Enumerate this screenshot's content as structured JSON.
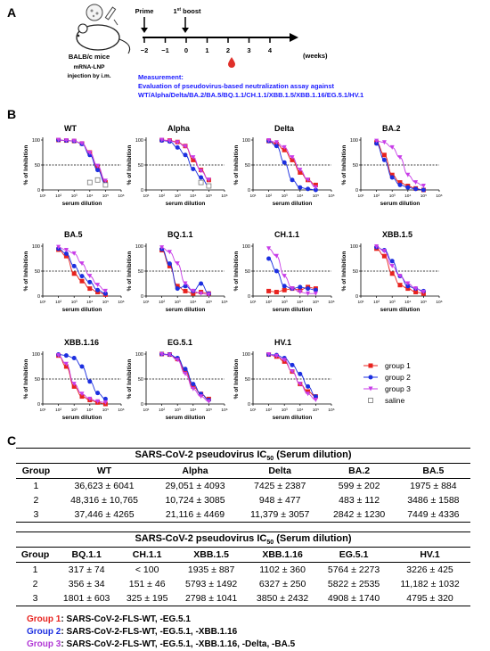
{
  "panel_labels": {
    "a": "A",
    "b": "B",
    "c": "C"
  },
  "schematic": {
    "mouse_label_1": "BALB/c mice",
    "mouse_label_2": "mRNA-LNP",
    "mouse_label_3": "injection by i.m.",
    "prime_label": "Prime",
    "boost_label": "1",
    "boost_sup": "st",
    "boost_word": " boost",
    "ticks": [
      "−2",
      "−1",
      "0",
      "1",
      "2",
      "3",
      "4"
    ],
    "weeks_label": "(weeks)",
    "measurement_title": "Measurement:",
    "measurement_line1": "Evaluation of pseudovirus-based neutralization assay against",
    "measurement_line2": "WT/Alpha/Delta/BA.2/BA.5/BQ.1.1/CH.1.1/XBB.1.5/XBB.1.16/EG.5.1/HV.1",
    "colors": {
      "blue_text": "#1a1aff",
      "drop": "#e0302a"
    }
  },
  "chart_common": {
    "ylabel": "% of Inhibition",
    "xlabel": "serum dilution",
    "y_ticks": [
      "0",
      "50",
      "100"
    ],
    "x_ticks": [
      "10¹",
      "10²",
      "10³",
      "10⁴",
      "10⁵",
      "10⁶"
    ],
    "ylim": [
      0,
      100
    ],
    "xlim_log10": [
      1,
      6
    ],
    "reference_line": 50,
    "series_styles": [
      {
        "name": "group 1",
        "color": "#e8231f",
        "marker": "square"
      },
      {
        "name": "group 2",
        "color": "#1c2fe0",
        "marker": "circle"
      },
      {
        "name": "group 3",
        "color": "#c83de8",
        "marker": "triangle-down"
      },
      {
        "name": "saline",
        "color": "#777777",
        "marker": "open-square"
      }
    ]
  },
  "chart_data": [
    {
      "type": "scatter",
      "title": "WT",
      "x_log10": [
        2,
        2.5,
        3,
        3.5,
        4,
        4.5,
        5
      ],
      "series": [
        {
          "name": "group 1",
          "values": [
            100,
            99,
            98,
            93,
            75,
            45,
            15
          ]
        },
        {
          "name": "group 2",
          "values": [
            100,
            99,
            98,
            92,
            70,
            40,
            12
          ]
        },
        {
          "name": "group 3",
          "values": [
            100,
            99,
            98,
            93,
            74,
            48,
            18
          ]
        },
        {
          "name": "saline",
          "values": [
            null,
            null,
            null,
            null,
            15,
            20,
            10
          ]
        }
      ]
    },
    {
      "type": "scatter",
      "title": "Alpha",
      "x_log10": [
        2,
        2.5,
        3,
        3.5,
        4,
        4.5,
        5
      ],
      "series": [
        {
          "name": "group 1",
          "values": [
            100,
            99,
            96,
            88,
            60,
            40,
            20
          ]
        },
        {
          "name": "group 2",
          "values": [
            99,
            97,
            85,
            70,
            42,
            25,
            8
          ]
        },
        {
          "name": "group 3",
          "values": [
            100,
            98,
            95,
            87,
            65,
            38,
            20
          ]
        },
        {
          "name": "saline",
          "values": [
            null,
            null,
            null,
            null,
            null,
            15,
            8
          ]
        }
      ]
    },
    {
      "type": "scatter",
      "title": "Delta",
      "x_log10": [
        2,
        2.5,
        3,
        3.5,
        4,
        4.5,
        5
      ],
      "series": [
        {
          "name": "group 1",
          "values": [
            98,
            92,
            80,
            60,
            35,
            20,
            10
          ]
        },
        {
          "name": "group 2",
          "values": [
            98,
            88,
            55,
            20,
            5,
            2,
            0
          ]
        },
        {
          "name": "group 3",
          "values": [
            99,
            95,
            85,
            65,
            40,
            20,
            5
          ]
        }
      ]
    },
    {
      "type": "scatter",
      "title": "BA.2",
      "x_log10": [
        2,
        2.5,
        3,
        3.5,
        4,
        4.5,
        5
      ],
      "series": [
        {
          "name": "group 1",
          "values": [
            95,
            70,
            30,
            15,
            8,
            3,
            0
          ]
        },
        {
          "name": "group 2",
          "values": [
            93,
            60,
            25,
            10,
            5,
            2,
            0
          ]
        },
        {
          "name": "group 3",
          "values": [
            98,
            95,
            85,
            65,
            30,
            15,
            8
          ]
        }
      ]
    },
    {
      "type": "scatter",
      "title": "BA.5",
      "x_log10": [
        2,
        2.5,
        3,
        3.5,
        4,
        4.5,
        5
      ],
      "series": [
        {
          "name": "group 1",
          "values": [
            93,
            80,
            45,
            30,
            15,
            8,
            3
          ]
        },
        {
          "name": "group 2",
          "values": [
            95,
            85,
            60,
            40,
            28,
            12,
            5
          ]
        },
        {
          "name": "group 3",
          "values": [
            98,
            92,
            85,
            65,
            40,
            22,
            10
          ]
        }
      ]
    },
    {
      "type": "scatter",
      "title": "BQ.1.1",
      "x_log10": [
        2,
        2.5,
        3,
        3.5,
        4,
        4.5,
        5
      ],
      "series": [
        {
          "name": "group 1",
          "values": [
            92,
            60,
            20,
            10,
            5,
            8,
            5
          ]
        },
        {
          "name": "group 2",
          "values": [
            94,
            65,
            15,
            20,
            10,
            25,
            5
          ]
        },
        {
          "name": "group 3",
          "values": [
            97,
            88,
            65,
            25,
            10,
            5,
            3
          ]
        }
      ]
    },
    {
      "type": "scatter",
      "title": "CH.1.1",
      "x_log10": [
        2,
        2.5,
        3,
        3.5,
        4,
        4.5,
        5
      ],
      "series": [
        {
          "name": "group 1",
          "values": [
            10,
            8,
            12,
            15,
            12,
            18,
            15
          ]
        },
        {
          "name": "group 2",
          "values": [
            75,
            50,
            20,
            15,
            18,
            15,
            12
          ]
        },
        {
          "name": "group 3",
          "values": [
            95,
            80,
            40,
            15,
            8,
            5,
            5
          ]
        }
      ]
    },
    {
      "type": "scatter",
      "title": "XBB.1.5",
      "x_log10": [
        2,
        2.5,
        3,
        3.5,
        4,
        4.5,
        5
      ],
      "series": [
        {
          "name": "group 1",
          "values": [
            95,
            80,
            45,
            22,
            15,
            8,
            5
          ]
        },
        {
          "name": "group 2",
          "values": [
            98,
            92,
            70,
            40,
            20,
            15,
            10
          ]
        },
        {
          "name": "group 3",
          "values": [
            99,
            90,
            60,
            40,
            25,
            15,
            8
          ]
        }
      ]
    },
    {
      "type": "scatter",
      "title": "XBB.1.16",
      "x_log10": [
        2,
        2.5,
        3,
        3.5,
        4,
        4.5,
        5
      ],
      "series": [
        {
          "name": "group 1",
          "values": [
            97,
            75,
            35,
            15,
            8,
            3,
            0
          ]
        },
        {
          "name": "group 2",
          "values": [
            99,
            97,
            92,
            75,
            45,
            22,
            10
          ]
        },
        {
          "name": "group 3",
          "values": [
            97,
            80,
            40,
            20,
            10,
            5,
            3
          ]
        }
      ]
    },
    {
      "type": "scatter",
      "title": "EG.5.1",
      "x_log10": [
        2,
        2.5,
        3,
        3.5,
        4,
        4.5,
        5
      ],
      "series": [
        {
          "name": "group 1",
          "values": [
            100,
            99,
            90,
            65,
            35,
            20,
            10
          ]
        },
        {
          "name": "group 2",
          "values": [
            100,
            99,
            92,
            70,
            40,
            20,
            8
          ]
        },
        {
          "name": "group 3",
          "values": [
            99,
            98,
            88,
            60,
            30,
            15,
            5
          ]
        }
      ]
    },
    {
      "type": "scatter",
      "title": "HV.1",
      "x_log10": [
        2,
        2.5,
        3,
        3.5,
        4,
        4.5,
        5
      ],
      "series": [
        {
          "name": "group 1",
          "values": [
            99,
            95,
            85,
            65,
            40,
            25,
            15
          ]
        },
        {
          "name": "group 2",
          "values": [
            99,
            98,
            92,
            78,
            60,
            35,
            15
          ]
        },
        {
          "name": "group 3",
          "values": [
            99,
            96,
            88,
            65,
            40,
            20,
            8
          ]
        }
      ]
    }
  ],
  "table1": {
    "title_pre": "SARS-CoV-2 pseudovirus IC",
    "title_sub": "50",
    "title_post": " (Serum dilution)",
    "headers": [
      "Group",
      "WT",
      "Alpha",
      "Delta",
      "BA.2",
      "BA.5"
    ],
    "rows": [
      [
        "1",
        "36,623 ± 6041",
        "29,051 ± 4093",
        "7425 ± 2387",
        "599 ± 202",
        "1975 ± 884"
      ],
      [
        "2",
        "48,316 ± 10,765",
        "10,724 ± 3085",
        "948 ± 477",
        "483 ± 112",
        "3486 ± 1588"
      ],
      [
        "3",
        "37,446 ± 4265",
        "21,116 ± 4469",
        "11,379 ± 3057",
        "2842 ± 1230",
        "7449 ± 4336"
      ]
    ]
  },
  "table2": {
    "title_pre": "SARS-CoV-2 pseudovirus IC",
    "title_sub": "50",
    "title_post": " (Serum dilution)",
    "headers": [
      "Group",
      "BQ.1.1",
      "CH.1.1",
      "XBB.1.5",
      "XBB.1.16",
      "EG.5.1",
      "HV.1"
    ],
    "rows": [
      [
        "1",
        "317 ± 74",
        "< 100",
        "1935 ± 887",
        "1102 ± 360",
        "5764 ± 2273",
        "3226 ± 425"
      ],
      [
        "2",
        "356 ± 34",
        "151 ± 46",
        "5793 ± 1492",
        "6327 ± 250",
        "5822 ± 2535",
        "11,182 ± 1032"
      ],
      [
        "3",
        "1801 ± 603",
        "325 ± 195",
        "2798 ± 1041",
        "3850 ± 2432",
        "4908 ± 1740",
        "4795 ± 320"
      ]
    ]
  },
  "group_legend": [
    {
      "name": "Group 1",
      "desc": ": SARS-CoV-2-FLS-WT, -EG.5.1",
      "color": "#e8231f"
    },
    {
      "name": "Group 2",
      "desc": ": SARS-CoV-2-FLS-WT, -EG.5.1, -XBB.1.16",
      "color": "#1c2fe0"
    },
    {
      "name": "Group 3",
      "desc": ": SARS-CoV-2-FLS-WT, -EG.5.1, -XBB.1.16, -Delta, -BA.5",
      "color": "#b23ad6"
    }
  ]
}
